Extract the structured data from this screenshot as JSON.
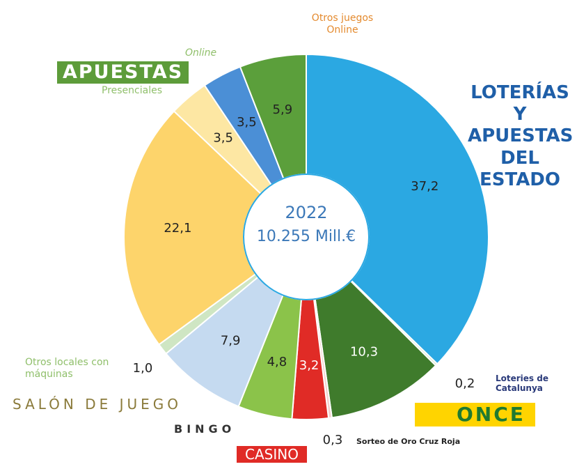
{
  "chart_data": {
    "type": "pie",
    "center_label": [
      "2022",
      "10.255 Mill.€"
    ],
    "annotations": [
      "APUESTAS"
    ],
    "categories": [
      "LOTERÍAS Y APUESTAS DEL ESTADO",
      "Loteries de Catalunya",
      "ONCE",
      "Sorteo de Oro Cruz Roja",
      "CASINO",
      "BINGO",
      "SALÓN DE JUEGO",
      "Otros locales con máquinas",
      null,
      "Presenciales",
      "Online",
      "Otros juegos Online"
    ],
    "values": [
      37.2,
      0.2,
      10.3,
      0.3,
      3.2,
      4.8,
      7.9,
      1.0,
      22.1,
      3.5,
      3.5,
      5.9
    ],
    "value_labels": [
      "37,2",
      "0,2",
      "10,3",
      "0,3",
      "3,2",
      "4,8",
      "7,9",
      "1,0",
      "22,1",
      "3,5",
      "3,5",
      "5,9"
    ],
    "colors": [
      "#2ba8e2",
      "#d9ead3",
      "#3f7b2c",
      "#f4d0cc",
      "#e02b26",
      "#8bc34a",
      "#c5daf0",
      "#cfe6c3",
      "#fdd46b",
      "#fde7a3",
      "#4b8fd6",
      "#5b9f3b"
    ]
  }
}
